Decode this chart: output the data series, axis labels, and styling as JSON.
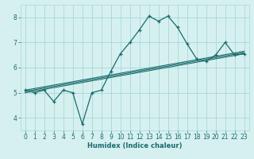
{
  "title": "",
  "xlabel": "Humidex (Indice chaleur)",
  "bg_color": "#d6f0f0",
  "grid_color": "#a8d8d8",
  "line_color": "#1a6b6b",
  "xlim": [
    -0.5,
    23.5
  ],
  "ylim": [
    3.5,
    8.5
  ],
  "xticks": [
    0,
    1,
    2,
    3,
    4,
    5,
    6,
    7,
    8,
    9,
    10,
    11,
    12,
    13,
    14,
    15,
    16,
    17,
    18,
    19,
    20,
    21,
    22,
    23
  ],
  "yticks": [
    4,
    5,
    6,
    7,
    8
  ],
  "main_line_x": [
    0,
    1,
    2,
    3,
    4,
    5,
    6,
    7,
    8,
    9,
    10,
    11,
    12,
    13,
    14,
    15,
    16,
    17,
    18,
    19,
    20,
    21,
    22,
    23
  ],
  "main_line_y": [
    5.1,
    5.0,
    5.1,
    4.65,
    5.1,
    5.0,
    3.75,
    5.0,
    5.1,
    5.85,
    6.55,
    7.0,
    7.5,
    8.05,
    7.85,
    8.05,
    7.6,
    6.95,
    6.35,
    6.25,
    6.5,
    7.0,
    6.5,
    6.55
  ],
  "reg_line1_x": [
    0,
    23
  ],
  "reg_line1_y": [
    5.05,
    6.6
  ],
  "reg_line2_x": [
    0,
    23
  ],
  "reg_line2_y": [
    5.1,
    6.65
  ],
  "reg_line3_x": [
    0,
    23
  ],
  "reg_line3_y": [
    5.0,
    6.55
  ],
  "xlabel_fontsize": 6,
  "tick_fontsize": 5.5
}
